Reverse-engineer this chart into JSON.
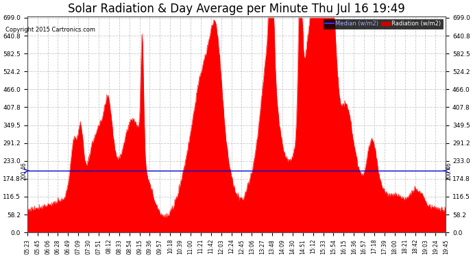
{
  "title": "Solar Radiation & Day Average per Minute Thu Jul 16 19:49",
  "copyright": "Copyright 2015 Cartronics.com",
  "median_value": 200.46,
  "ymin": 0.0,
  "ymax": 699.0,
  "yticks": [
    0.0,
    58.2,
    116.5,
    174.8,
    233.0,
    291.2,
    349.5,
    407.8,
    466.0,
    524.2,
    582.5,
    640.8,
    699.0
  ],
  "fill_color": "#ff0000",
  "median_color": "#0000cc",
  "background_color": "#ffffff",
  "grid_color": "#c8c8c8",
  "title_fontsize": 12,
  "tick_fontsize": 6.5,
  "legend_median_color": "#3333ff",
  "legend_radiation_color": "#cc0000",
  "x_labels": [
    "05:23",
    "05:45",
    "06:06",
    "06:28",
    "06:49",
    "07:09",
    "07:30",
    "07:51",
    "08:12",
    "08:33",
    "08:54",
    "09:15",
    "09:36",
    "09:57",
    "10:18",
    "10:39",
    "11:00",
    "11:21",
    "11:42",
    "12:03",
    "12:24",
    "12:45",
    "13:06",
    "13:27",
    "13:48",
    "14:09",
    "14:30",
    "14:51",
    "15:12",
    "15:33",
    "15:54",
    "16:15",
    "16:36",
    "16:57",
    "17:18",
    "17:39",
    "18:00",
    "18:21",
    "18:42",
    "19:03",
    "19:24",
    "19:45"
  ]
}
